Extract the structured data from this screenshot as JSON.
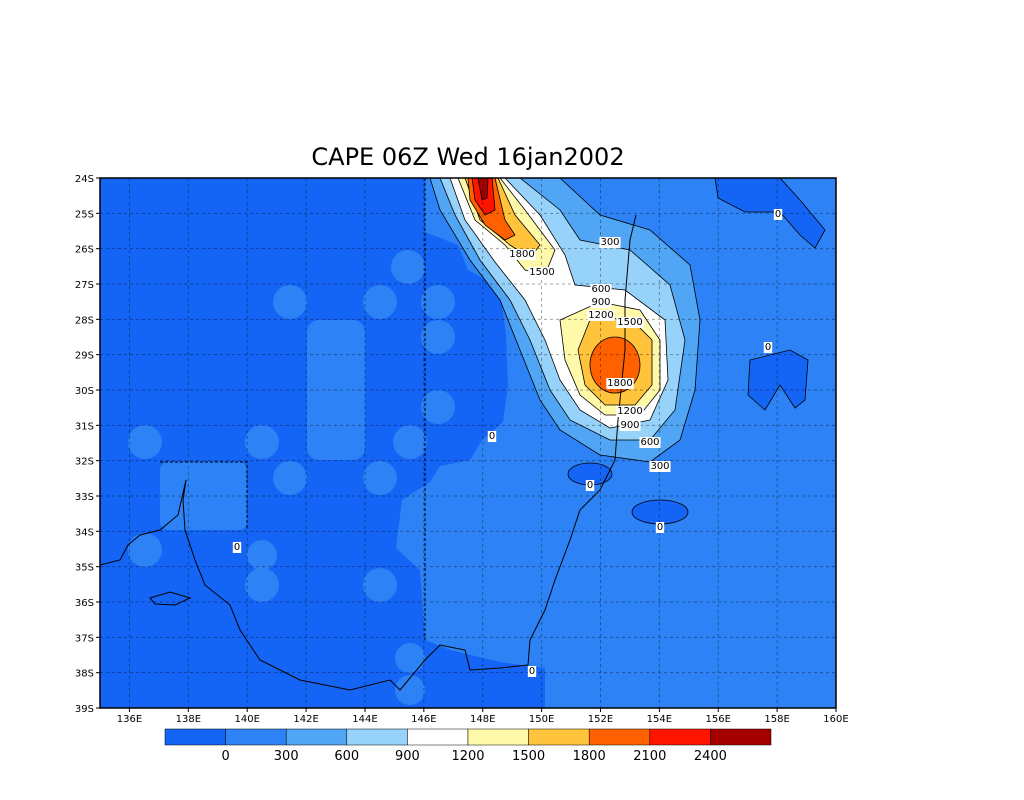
{
  "title": "CAPE 06Z Wed 16jan2002",
  "lat_labels": [
    "24S",
    "25S",
    "26S",
    "27S",
    "28S",
    "29S",
    "30S",
    "31S",
    "32S",
    "33S",
    "34S",
    "35S",
    "36S",
    "37S",
    "38S",
    "39S"
  ],
  "lon_labels": [
    "136E",
    "138E",
    "140E",
    "142E",
    "144E",
    "146E",
    "148E",
    "150E",
    "152E",
    "154E",
    "156E",
    "158E",
    "160E"
  ],
  "colorbar": {
    "colors": [
      "#1464f5",
      "#2d82f5",
      "#50a5f5",
      "#96d2fa",
      "#ffffff",
      "#fffaaa",
      "#ffc33c",
      "#ff6000",
      "#ff1400",
      "#a50000"
    ],
    "labels": [
      "0",
      "300",
      "600",
      "900",
      "1200",
      "1500",
      "1800",
      "2100",
      "2400"
    ]
  },
  "contour_labels": [
    "0",
    "300",
    "1800",
    "1500",
    "600",
    "900",
    "1200",
    "1500",
    "0",
    "1800",
    "1200",
    "900",
    "600",
    "0",
    "300",
    "0",
    "0",
    "0",
    "0"
  ]
}
